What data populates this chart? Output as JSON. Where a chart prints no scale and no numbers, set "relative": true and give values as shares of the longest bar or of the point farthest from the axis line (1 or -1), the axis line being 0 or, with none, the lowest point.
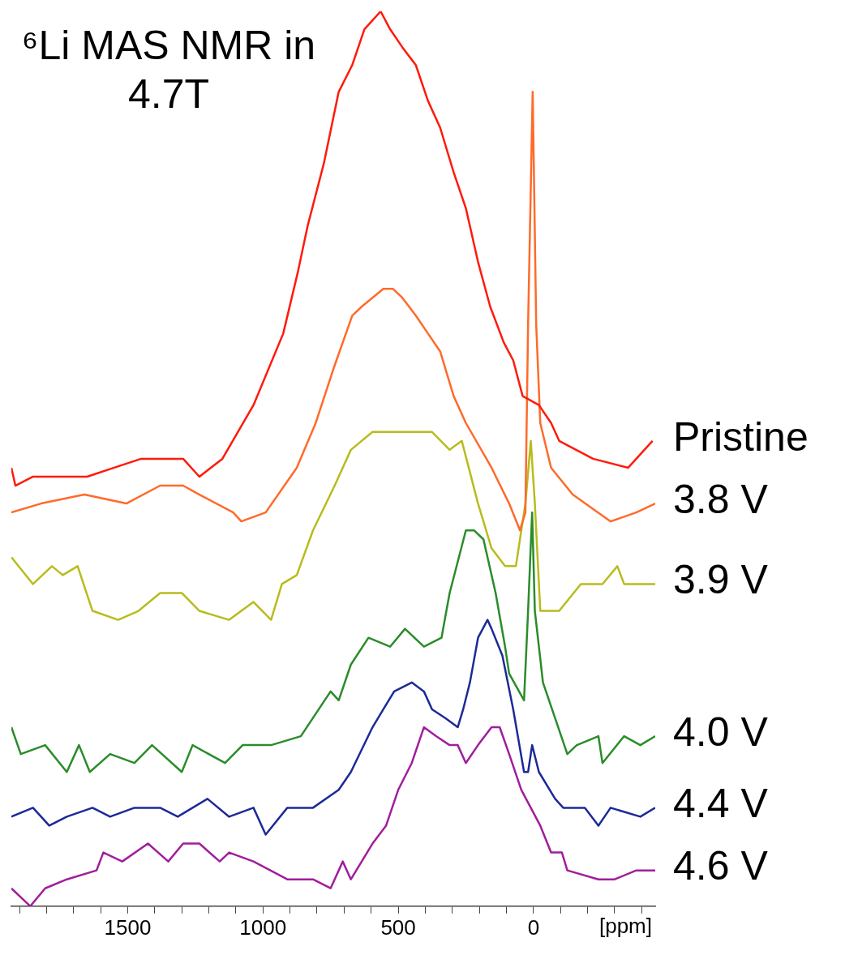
{
  "chart_data": {
    "type": "line",
    "title": "⁶Li MAS NMR in 4.7T",
    "xlabel": "[ppm]",
    "relative": true,
    "tick_labels": "x",
    "xlim": [
      1930,
      -450
    ],
    "xticks": [
      {
        "value": 1900,
        "label": null
      },
      {
        "value": 1800,
        "label": null
      },
      {
        "value": 1700,
        "label": null
      },
      {
        "value": 1600,
        "label": null
      },
      1500,
      {
        "value": 1400,
        "label": null
      },
      {
        "value": 1300,
        "label": null
      },
      {
        "value": 1200,
        "label": null
      },
      {
        "value": 1100,
        "label": null
      },
      1000,
      {
        "value": 900,
        "label": null
      },
      {
        "value": 800,
        "label": null
      },
      {
        "value": 700,
        "label": null
      },
      {
        "value": 600,
        "label": null
      },
      500,
      {
        "value": 400,
        "label": null
      },
      {
        "value": 300,
        "label": null
      },
      {
        "value": 200,
        "label": null
      },
      {
        "value": 100,
        "label": null
      },
      0,
      {
        "value": -100,
        "label": null
      },
      {
        "value": -200,
        "label": null
      },
      {
        "value": -300,
        "label": null
      },
      {
        "value": -400,
        "label": null
      }
    ],
    "series": [
      {
        "name": "Pristine",
        "color": "#ff1a0a",
        "x": [
          1930,
          1915,
          1850,
          1750,
          1650,
          1550,
          1450,
          1350,
          1295,
          1235,
          1150,
          1035,
          925,
          870,
          835,
          775,
          720,
          670,
          625,
          565,
          530,
          485,
          435,
          390,
          345,
          295,
          250,
          205,
          160,
          110,
          75,
          40,
          -20,
          -65,
          -95,
          -220,
          -350,
          -440
        ],
        "values": [
          0.49,
          0.47,
          0.48,
          0.48,
          0.48,
          0.49,
          0.5,
          0.5,
          0.5,
          0.48,
          0.5,
          0.56,
          0.64,
          0.71,
          0.76,
          0.83,
          0.91,
          0.94,
          0.98,
          1.0,
          0.98,
          0.96,
          0.94,
          0.9,
          0.87,
          0.82,
          0.78,
          0.72,
          0.67,
          0.63,
          0.61,
          0.57,
          0.56,
          0.54,
          0.52,
          0.5,
          0.49,
          0.52
        ]
      },
      {
        "name": "3.8 V",
        "color": "#ff6a2a",
        "x": [
          1930,
          1820,
          1660,
          1505,
          1380,
          1295,
          1235,
          1110,
          1080,
          990,
          875,
          805,
          740,
          670,
          635,
          555,
          520,
          485,
          435,
          390,
          345,
          295,
          250,
          155,
          90,
          50,
          30,
          20,
          3,
          -10,
          -25,
          -65,
          -145,
          -285,
          -380,
          -450
        ],
        "values": [
          0.44,
          0.45,
          0.46,
          0.45,
          0.47,
          0.47,
          0.46,
          0.44,
          0.43,
          0.44,
          0.49,
          0.54,
          0.6,
          0.66,
          0.67,
          0.69,
          0.69,
          0.68,
          0.66,
          0.64,
          0.62,
          0.57,
          0.54,
          0.49,
          0.45,
          0.42,
          0.44,
          0.65,
          0.91,
          0.65,
          0.54,
          0.49,
          0.46,
          0.43,
          0.44,
          0.45
        ]
      },
      {
        "name": "3.9 V",
        "color": "#b8bc1c",
        "x": [
          1930,
          1850,
          1780,
          1740,
          1685,
          1630,
          1535,
          1460,
          1380,
          1300,
          1235,
          1125,
          1035,
          970,
          930,
          875,
          815,
          735,
          675,
          595,
          500,
          405,
          375,
          310,
          265,
          205,
          155,
          105,
          65,
          30,
          10,
          -5,
          -25,
          -95,
          -175,
          -255,
          -310,
          -335,
          -450
        ],
        "values": [
          0.39,
          0.36,
          0.38,
          0.37,
          0.38,
          0.33,
          0.32,
          0.33,
          0.35,
          0.35,
          0.33,
          0.32,
          0.34,
          0.32,
          0.36,
          0.37,
          0.42,
          0.47,
          0.51,
          0.53,
          0.53,
          0.53,
          0.53,
          0.51,
          0.52,
          0.45,
          0.4,
          0.38,
          0.38,
          0.45,
          0.52,
          0.45,
          0.33,
          0.33,
          0.36,
          0.36,
          0.38,
          0.36,
          0.36
        ]
      },
      {
        "name": "4.0 V",
        "color": "#2a8c2a",
        "x": [
          1930,
          1895,
          1805,
          1725,
          1680,
          1640,
          1565,
          1475,
          1410,
          1300,
          1260,
          1140,
          1075,
          970,
          860,
          750,
          720,
          675,
          610,
          530,
          475,
          405,
          340,
          310,
          250,
          220,
          185,
          140,
          105,
          90,
          35,
          20,
          5,
          -5,
          -35,
          -125,
          -160,
          -240,
          -255,
          -335,
          -395,
          -450
        ],
        "values": [
          0.2,
          0.17,
          0.18,
          0.15,
          0.18,
          0.15,
          0.17,
          0.16,
          0.18,
          0.15,
          0.18,
          0.16,
          0.18,
          0.18,
          0.19,
          0.24,
          0.23,
          0.27,
          0.3,
          0.29,
          0.31,
          0.29,
          0.3,
          0.35,
          0.42,
          0.42,
          0.41,
          0.35,
          0.29,
          0.26,
          0.23,
          0.33,
          0.44,
          0.33,
          0.25,
          0.17,
          0.18,
          0.19,
          0.16,
          0.19,
          0.18,
          0.19
        ]
      },
      {
        "name": "4.4 V",
        "color": "#1c2a96",
        "x": [
          1930,
          1850,
          1790,
          1725,
          1630,
          1565,
          1475,
          1380,
          1315,
          1205,
          1125,
          1035,
          990,
          910,
          815,
          720,
          675,
          595,
          555,
          515,
          450,
          405,
          375,
          325,
          280,
          260,
          235,
          205,
          170,
          155,
          115,
          75,
          35,
          20,
          5,
          -20,
          -80,
          -110,
          -190,
          -240,
          -285,
          -395,
          -450
        ],
        "values": [
          0.1,
          0.11,
          0.09,
          0.1,
          0.11,
          0.1,
          0.11,
          0.11,
          0.1,
          0.12,
          0.1,
          0.11,
          0.08,
          0.11,
          0.11,
          0.13,
          0.15,
          0.2,
          0.22,
          0.24,
          0.25,
          0.24,
          0.22,
          0.21,
          0.2,
          0.22,
          0.25,
          0.3,
          0.32,
          0.31,
          0.28,
          0.22,
          0.15,
          0.15,
          0.18,
          0.15,
          0.12,
          0.11,
          0.11,
          0.09,
          0.11,
          0.1,
          0.11
        ]
      },
      {
        "name": "4.6 V",
        "color": "#a01e9c",
        "x": [
          1930,
          1860,
          1805,
          1725,
          1615,
          1590,
          1520,
          1425,
          1350,
          1295,
          1235,
          1160,
          1125,
          1035,
          910,
          815,
          750,
          705,
          675,
          595,
          545,
          500,
          450,
          405,
          360,
          310,
          280,
          250,
          205,
          155,
          125,
          90,
          45,
          10,
          -25,
          -65,
          -105,
          -125,
          -240,
          -300,
          -380,
          -450
        ],
        "values": [
          0.02,
          0.0,
          0.02,
          0.03,
          0.04,
          0.06,
          0.05,
          0.07,
          0.05,
          0.07,
          0.07,
          0.05,
          0.06,
          0.05,
          0.03,
          0.03,
          0.02,
          0.05,
          0.03,
          0.07,
          0.09,
          0.13,
          0.16,
          0.2,
          0.19,
          0.18,
          0.18,
          0.16,
          0.18,
          0.2,
          0.2,
          0.17,
          0.13,
          0.11,
          0.09,
          0.06,
          0.06,
          0.04,
          0.03,
          0.03,
          0.04,
          0.04
        ]
      }
    ]
  }
}
